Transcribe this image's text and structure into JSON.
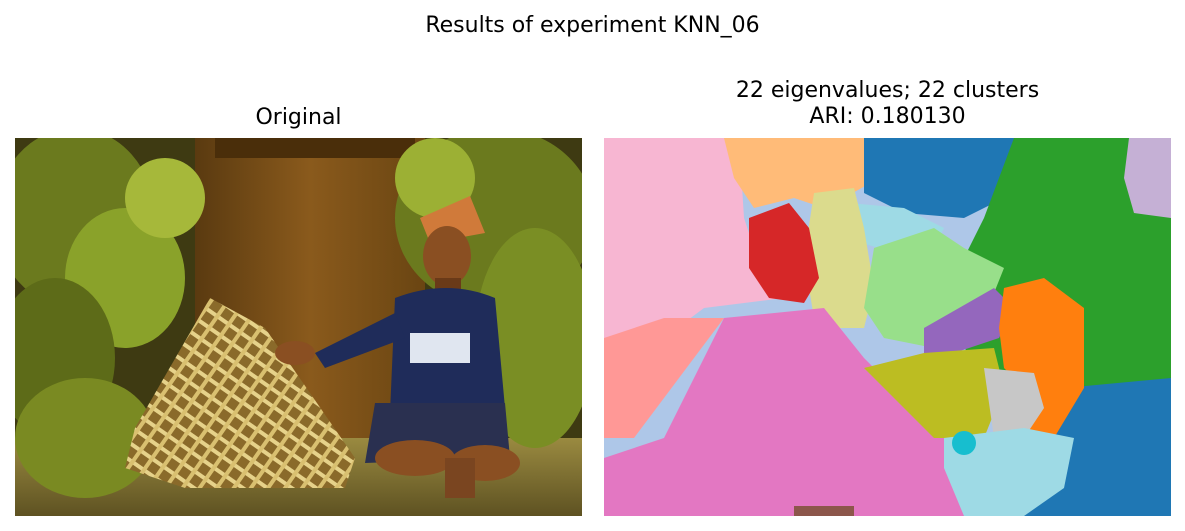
{
  "figure": {
    "suptitle": "Results of experiment KNN_06"
  },
  "left_panel": {
    "title": "Original"
  },
  "right_panel": {
    "title_line1": "22 eigenvalues; 22 clusters",
    "title_line2": "ARI: 0.180130"
  },
  "colors": {
    "pink": "#f7b6d2",
    "light_blue": "#aec7e8",
    "orange_light": "#ffbb78",
    "blue": "#1f77b4",
    "green": "#2ca02c",
    "lavender": "#c5b0d5",
    "red": "#d62728",
    "khaki": "#dbdb8d",
    "sky": "#9edae5",
    "light_green": "#98df8a",
    "purple": "#9467bd",
    "orange": "#ff7f0e",
    "salmon": "#ff9896",
    "magenta": "#e377c2",
    "olive": "#bcbd22",
    "gray": "#c7c7c7",
    "cyan": "#17becf",
    "brown": "#8c564b"
  }
}
